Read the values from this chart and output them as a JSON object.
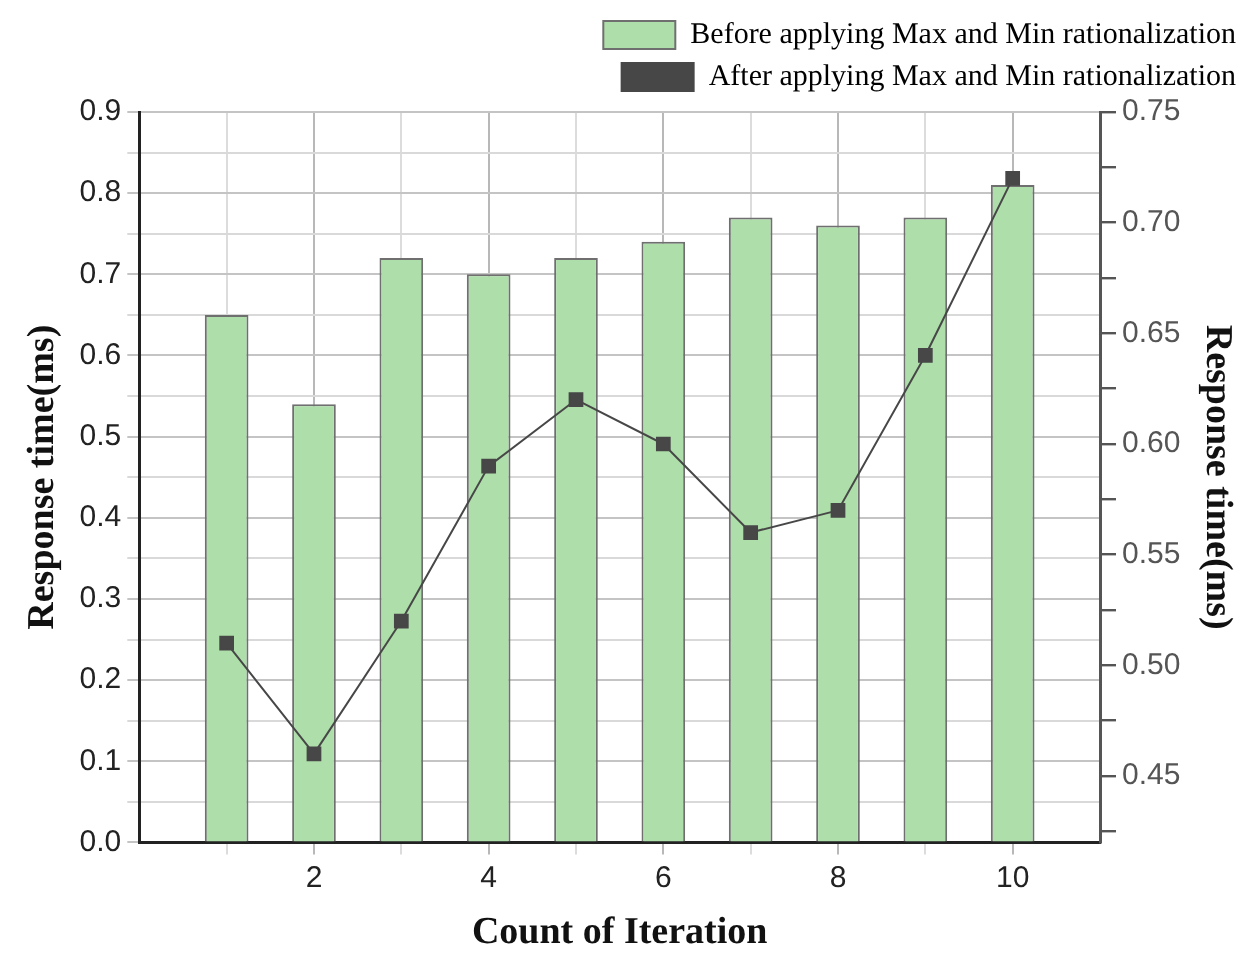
{
  "chart_data": {
    "type": "bar",
    "xlabel": "Count of Iteration",
    "ylabel": "Response time(ms)",
    "y2label": "Response time(ms)",
    "x": [
      1,
      2,
      3,
      4,
      5,
      6,
      7,
      8,
      9,
      10
    ],
    "series": [
      {
        "name": "Before applying Max and Min rationalization",
        "color": "#aedfaa",
        "values": [
          0.65,
          0.54,
          0.72,
          0.7,
          0.72,
          0.74,
          0.77,
          0.76,
          0.77,
          0.81
        ]
      },
      {
        "name": "After applying Max and Min rationalization",
        "type": "line",
        "axis": "y2",
        "color": "#474747",
        "values": [
          0.51,
          0.46,
          0.52,
          0.59,
          0.62,
          0.6,
          0.56,
          0.57,
          0.64,
          0.72
        ]
      }
    ],
    "xlim": [
      0,
      11
    ],
    "xticks": [
      {
        "value": 1,
        "label": null
      },
      2,
      {
        "value": 3,
        "label": null
      },
      4,
      {
        "value": 5,
        "label": null
      },
      6,
      {
        "value": 7,
        "label": null
      },
      8,
      {
        "value": 9,
        "label": null
      },
      10
    ],
    "ylim": [
      0,
      0.9
    ],
    "yticks": [
      {
        "value": 0,
        "label": "0.0"
      },
      {
        "value": 0.05,
        "label": null
      },
      0.1,
      {
        "value": 0.15,
        "label": null
      },
      0.2,
      {
        "value": 0.25,
        "label": null
      },
      0.3,
      {
        "value": 0.35,
        "label": null
      },
      0.4,
      {
        "value": 0.45,
        "label": null
      },
      0.5,
      {
        "value": 0.55,
        "label": null
      },
      0.6,
      {
        "value": 0.65,
        "label": null
      },
      0.7,
      {
        "value": 0.75,
        "label": null
      },
      0.8,
      {
        "value": 0.85,
        "label": null
      },
      0.9
    ],
    "y2lim": [
      0.42,
      0.75
    ],
    "y2ticks": [
      {
        "value": 0.425,
        "label": null
      },
      0.45,
      {
        "value": 0.475,
        "label": null
      },
      {
        "value": 0.5,
        "label": "0.50"
      },
      {
        "value": 0.525,
        "label": null
      },
      0.55,
      {
        "value": 0.575,
        "label": null
      },
      {
        "value": 0.6,
        "label": "0.60"
      },
      {
        "value": 0.625,
        "label": null
      },
      0.65,
      {
        "value": 0.675,
        "label": null
      },
      {
        "value": 0.7,
        "label": "0.70"
      },
      {
        "value": 0.725,
        "label": null
      },
      0.75
    ],
    "grid": true,
    "legend": "top right",
    "marker": "square",
    "line_style": "solid"
  }
}
